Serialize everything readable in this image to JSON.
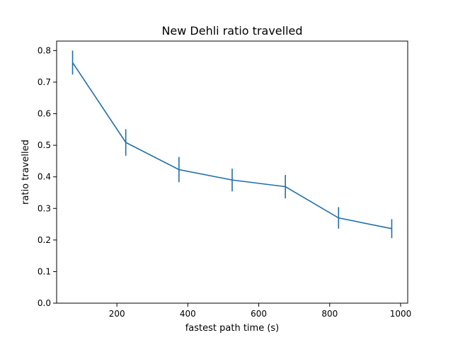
{
  "chart_data": {
    "type": "line",
    "title": "New Dehli ratio travelled",
    "xlabel": "fastest path time (s)",
    "ylabel": "ratio travelled",
    "xlim": [
      30,
      1020
    ],
    "ylim": [
      0.0,
      0.83
    ],
    "xticks": [
      200,
      400,
      600,
      800,
      1000
    ],
    "yticks": [
      0.0,
      0.1,
      0.2,
      0.3,
      0.4,
      0.5,
      0.6,
      0.7,
      0.8
    ],
    "grid": false,
    "color": "#1f6fa8",
    "series": [
      {
        "x": [
          75,
          225,
          375,
          525,
          675,
          825,
          975
        ],
        "y": [
          0.762,
          0.509,
          0.423,
          0.39,
          0.369,
          0.27,
          0.236
        ],
        "err": [
          0.038,
          0.042,
          0.04,
          0.036,
          0.037,
          0.034,
          0.03
        ]
      }
    ]
  }
}
